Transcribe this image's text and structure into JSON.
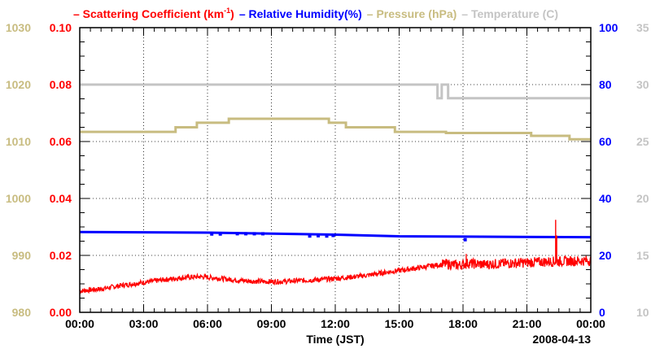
{
  "chart_data": {
    "type": "line",
    "title_legend": [
      {
        "name": "Scattering Coefficient (km",
        "sup": "-1",
        "tail": ")",
        "color": "#ff0000"
      },
      {
        "name": "Relative Humidity(%)",
        "color": "#0000ff"
      },
      {
        "name": "Pressure (hPa)",
        "color": "#c8bc80"
      },
      {
        "name": "Temperature (C)",
        "color": "#c4c4c4"
      }
    ],
    "xlabel": "Time (JST)",
    "date_label": "2008-04-13",
    "x_ticks": [
      "00:00",
      "03:00",
      "06:00",
      "09:00",
      "12:00",
      "15:00",
      "18:00",
      "21:00",
      "00:00"
    ],
    "xlim_hours": [
      0,
      24
    ],
    "axes": {
      "pressure": {
        "ticks": [
          980,
          990,
          1000,
          1010,
          1020,
          1030
        ],
        "ylim": [
          980,
          1030
        ],
        "color": "#c8bc80"
      },
      "scattering": {
        "ticks": [
          "0.00",
          "0.02",
          "0.04",
          "0.06",
          "0.08",
          "0.10"
        ],
        "ylim": [
          0,
          0.1
        ],
        "color": "#ff0000"
      },
      "humidity": {
        "ticks": [
          0,
          20,
          40,
          60,
          80,
          100
        ],
        "ylim": [
          0,
          100
        ],
        "color": "#0000ff"
      },
      "temperature": {
        "ticks": [
          10,
          15,
          20,
          25,
          30,
          35
        ],
        "ylim": [
          10,
          35
        ],
        "color": "#c4c4c4"
      }
    },
    "series": [
      {
        "name": "Pressure (hPa)",
        "axis": "pressure",
        "style": "step",
        "points": [
          [
            0,
            1011.7
          ],
          [
            4.5,
            1011.7
          ],
          [
            4.5,
            1012.5
          ],
          [
            5.5,
            1012.5
          ],
          [
            5.5,
            1013.3
          ],
          [
            7,
            1013.3
          ],
          [
            7,
            1014
          ],
          [
            11.7,
            1014
          ],
          [
            11.7,
            1013.3
          ],
          [
            12.5,
            1013.3
          ],
          [
            12.5,
            1012.5
          ],
          [
            14.8,
            1012.5
          ],
          [
            14.8,
            1011.7
          ],
          [
            17.2,
            1011.7
          ],
          [
            17.2,
            1011.5
          ],
          [
            21.2,
            1011.5
          ],
          [
            21.2,
            1011
          ],
          [
            23,
            1011
          ],
          [
            23,
            1010.4
          ],
          [
            24,
            1010.4
          ]
        ]
      },
      {
        "name": "Temperature (C)",
        "axis": "temperature",
        "style": "step",
        "points": [
          [
            0,
            30
          ],
          [
            16.8,
            30
          ],
          [
            16.8,
            28.8
          ],
          [
            17,
            28.8
          ],
          [
            17,
            30
          ],
          [
            17.3,
            30
          ],
          [
            17.3,
            28.8
          ],
          [
            24,
            28.8
          ]
        ]
      },
      {
        "name": "Relative Humidity(%)",
        "axis": "humidity",
        "style": "line",
        "points": [
          [
            0,
            28.2
          ],
          [
            6,
            28
          ],
          [
            12,
            27.3
          ],
          [
            15,
            26.7
          ],
          [
            18,
            26.6
          ],
          [
            24,
            26.4
          ]
        ],
        "dots": [
          [
            6.2,
            27.5
          ],
          [
            6.6,
            27.5
          ],
          [
            7.4,
            27.6
          ],
          [
            7.8,
            27.6
          ],
          [
            8.2,
            27.6
          ],
          [
            8.6,
            27.6
          ],
          [
            10.8,
            26.8
          ],
          [
            11.2,
            26.9
          ],
          [
            11.6,
            26.8
          ],
          [
            11.9,
            27
          ],
          [
            18.1,
            25.5
          ]
        ]
      },
      {
        "name": "Scattering Coefficient (km-1)",
        "axis": "scattering",
        "style": "noisy",
        "points": [
          [
            0,
            0.0075
          ],
          [
            1,
            0.0082
          ],
          [
            2,
            0.0095
          ],
          [
            3,
            0.0105
          ],
          [
            4,
            0.0115
          ],
          [
            5,
            0.0123
          ],
          [
            5.7,
            0.0125
          ],
          [
            6.5,
            0.012
          ],
          [
            7.5,
            0.0112
          ],
          [
            8.5,
            0.0108
          ],
          [
            9.5,
            0.0108
          ],
          [
            10.5,
            0.0112
          ],
          [
            11.5,
            0.0116
          ],
          [
            12.5,
            0.0122
          ],
          [
            13.5,
            0.013
          ],
          [
            14.5,
            0.0142
          ],
          [
            15.5,
            0.0152
          ],
          [
            16.5,
            0.0163
          ],
          [
            17.2,
            0.017
          ],
          [
            17.8,
            0.0165
          ],
          [
            18.2,
            0.0172
          ],
          [
            19,
            0.0168
          ],
          [
            20,
            0.0172
          ],
          [
            21,
            0.0175
          ],
          [
            22,
            0.0178
          ],
          [
            23,
            0.018
          ],
          [
            24,
            0.0182
          ]
        ],
        "spikes": [
          [
            18.15,
            0.0205
          ],
          [
            22.35,
            0.0325
          ],
          [
            22.4,
            0.027
          ]
        ]
      }
    ]
  }
}
